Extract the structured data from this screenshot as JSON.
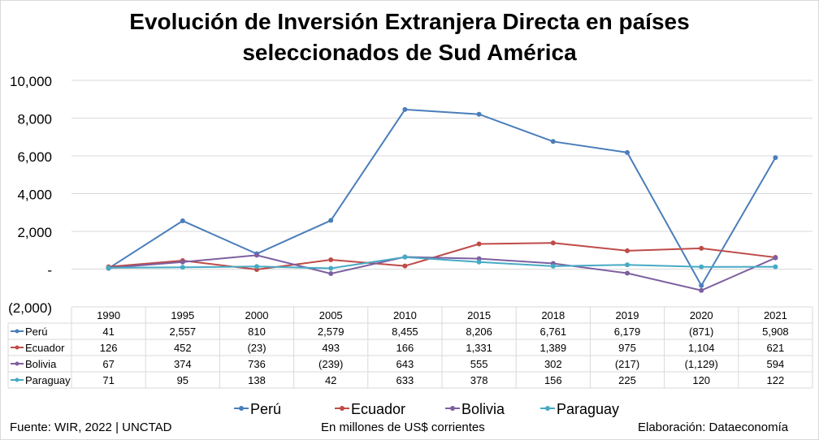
{
  "chart_data": {
    "type": "line",
    "title_line1": "Evolución de Inversión Extranjera Directa en países",
    "title_line2": "seleccionados de Sud América",
    "categories": [
      "1990",
      "1995",
      "2000",
      "2005",
      "2010",
      "2015",
      "2018",
      "2019",
      "2020",
      "2021"
    ],
    "ylim": [
      -2000,
      10000
    ],
    "yticks": [
      10000,
      8000,
      6000,
      4000,
      2000,
      0,
      -2000
    ],
    "ytick_labels": [
      "10,000",
      "8,000",
      "6,000",
      "4,000",
      "2,000",
      "-",
      "(2,000)"
    ],
    "grid": true,
    "legend_position": "bottom",
    "series": [
      {
        "name": "Perú",
        "color": "#4A7EBB",
        "values": [
          41,
          2557,
          810,
          2579,
          8455,
          8206,
          6761,
          6179,
          -871,
          5908
        ],
        "labels": [
          "41",
          "2,557",
          "810",
          "2,579",
          "8,455",
          "8,206",
          "6,761",
          "6,179",
          "(871)",
          "5,908"
        ]
      },
      {
        "name": "Ecuador",
        "color": "#BE4B48",
        "values": [
          126,
          452,
          -23,
          493,
          166,
          1331,
          1389,
          975,
          1104,
          621
        ],
        "labels": [
          "126",
          "452",
          "(23)",
          "493",
          "166",
          "1,331",
          "1,389",
          "975",
          "1,104",
          "621"
        ]
      },
      {
        "name": "Bolivia",
        "color": "#7D60A0",
        "values": [
          67,
          374,
          736,
          -239,
          643,
          555,
          302,
          -217,
          -1129,
          594
        ],
        "labels": [
          "67",
          "374",
          "736",
          "(239)",
          "643",
          "555",
          "302",
          "(217)",
          "(1,129)",
          "594"
        ]
      },
      {
        "name": "Paraguay",
        "color": "#46AAC5",
        "values": [
          71,
          95,
          138,
          42,
          633,
          378,
          156,
          225,
          120,
          122
        ],
        "labels": [
          "71",
          "95",
          "138",
          "42",
          "633",
          "378",
          "156",
          "225",
          "120",
          "122"
        ]
      }
    ]
  },
  "footer": {
    "source": "Fuente: WIR, 2022 | UNCTAD",
    "units": "En millones de US$ corrientes",
    "credit": "Elaboración: Dataeconomía"
  }
}
